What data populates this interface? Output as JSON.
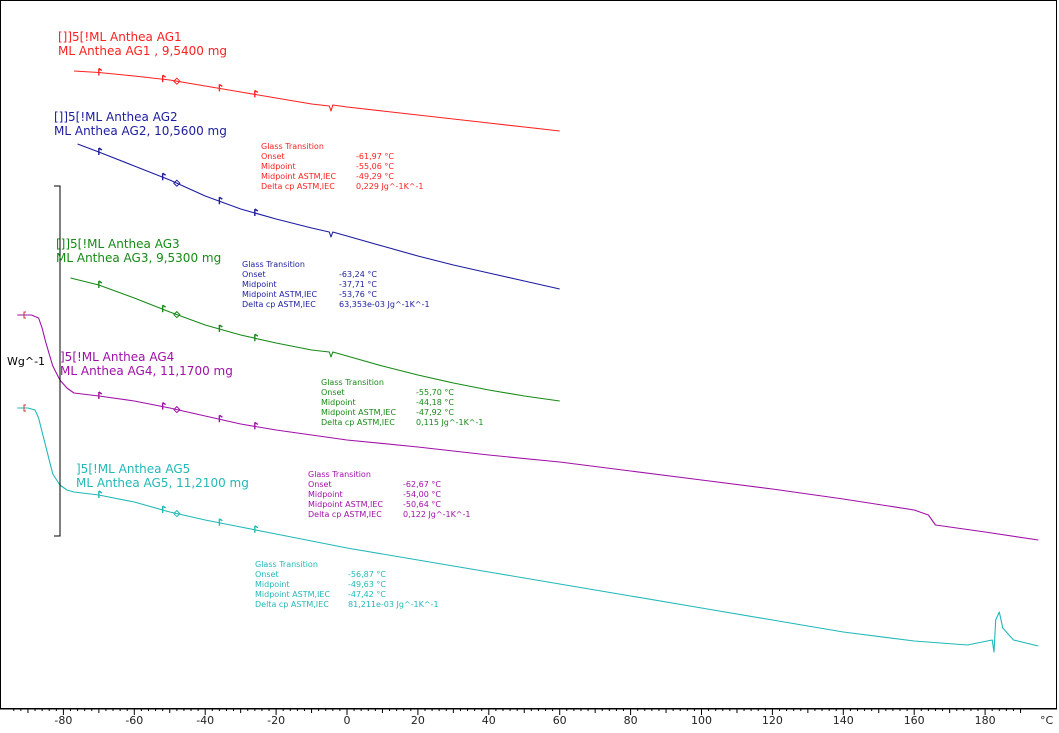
{
  "chart_data": {
    "type": "line",
    "xlabel": "°C",
    "ylabel": "Wg^-1",
    "xlim": [
      -95,
      195
    ],
    "grid": false,
    "x_ticks": [
      "-80",
      "-60",
      "-40",
      "-20",
      "0",
      "20",
      "40",
      "60",
      "80",
      "100",
      "120",
      "140",
      "160",
      "180"
    ],
    "x_tick_values": [
      -80,
      -60,
      -40,
      -20,
      0,
      20,
      40,
      60,
      80,
      100,
      120,
      140,
      160,
      180
    ],
    "series": [
      {
        "title1": "[]]5[!ML Anthea AG1",
        "title2": "ML Anthea AG1 , 9,5400 mg",
        "color": "#ff2020",
        "x": [
          -77,
          -70,
          -60,
          -50,
          -40,
          -30,
          -20,
          -10,
          -5,
          -4.5,
          -4,
          0,
          10,
          20,
          30,
          40,
          50,
          60
        ],
        "y": [
          71,
          72.5,
          76,
          80,
          86,
          92,
          98,
          104,
          106,
          111,
          105,
          107,
          111,
          115,
          119,
          123,
          127,
          131
        ]
      },
      {
        "title1": "[]]5[!ML Anthea AG2",
        "title2": "ML Anthea AG2, 10,5600 mg",
        "color": "#1c1ca0",
        "x": [
          -76,
          -70,
          -60,
          -50,
          -40,
          -30,
          -20,
          -10,
          -5,
          -4.5,
          -4,
          0,
          10,
          20,
          30,
          40,
          50,
          60
        ],
        "y": [
          144,
          152,
          166,
          180,
          196,
          209,
          219,
          228,
          232,
          237,
          232,
          236,
          246,
          256,
          265,
          273,
          281,
          289
        ]
      },
      {
        "title1": "[]]5[!ML Anthea AG3",
        "title2": "ML Anthea AG3, 9,5300 mg",
        "color": "#168a16",
        "x": [
          -78,
          -70,
          -60,
          -50,
          -40,
          -30,
          -20,
          -10,
          -5,
          -4.5,
          -4,
          0,
          10,
          20,
          30,
          40,
          50,
          60
        ],
        "y": [
          278,
          285,
          298,
          312,
          325,
          335,
          343,
          350,
          352,
          357,
          352,
          356,
          366,
          375,
          383,
          390,
          396,
          401
        ]
      },
      {
        "title1": "]5[!ML Anthea AG4",
        "title2": "ML Anthea AG4, 11,1700 mg",
        "color": "#a010a8",
        "x": [
          -93,
          -89,
          -87,
          -86,
          -85,
          -84,
          -83,
          -81,
          -79,
          -77,
          -70,
          -60,
          -50,
          -40,
          -30,
          -20,
          0,
          20,
          40,
          60,
          80,
          100,
          120,
          140,
          160,
          164,
          166,
          180,
          195
        ],
        "y": [
          315,
          315,
          318,
          328,
          342,
          354,
          366,
          380,
          388,
          393,
          396,
          401,
          408,
          416,
          424,
          430,
          440,
          447,
          455,
          462,
          471,
          480,
          489,
          499,
          510,
          515,
          525,
          532,
          540
        ]
      },
      {
        "title1": "]5[!ML Anthea AG5",
        "title2": "ML Anthea AG5, 11,2100 mg",
        "color": "#22b8b8",
        "x": [
          -93,
          -90,
          -88,
          -87,
          -86,
          -85,
          -84,
          -83,
          -81,
          -79,
          -77,
          -70,
          -60,
          -50,
          -40,
          -30,
          -20,
          0,
          20,
          40,
          60,
          80,
          100,
          120,
          140,
          160,
          175,
          182,
          182.5,
          183,
          184,
          185,
          188,
          195
        ],
        "y": [
          408,
          408,
          410,
          418,
          432,
          446,
          460,
          474,
          485,
          490,
          492,
          495,
          502,
          512,
          520,
          527,
          534,
          548,
          560,
          572,
          584,
          596,
          608,
          620,
          632,
          641,
          645,
          640,
          652,
          620,
          612,
          628,
          640,
          646
        ]
      }
    ],
    "glass_transitions": [
      {
        "color": "#ff2020",
        "header": "Glass Transition",
        "rows": [
          {
            "label": "Onset",
            "value": "-61,97 °C"
          },
          {
            "label": "Midpoint",
            "value": "-55,06 °C"
          },
          {
            "label": "Midpoint ASTM,IEC",
            "value": "-49,29 °C"
          },
          {
            "label": "Delta cp ASTM,IEC",
            "value": "0,229 Jg^-1K^-1"
          }
        ]
      },
      {
        "color": "#1c1ca0",
        "header": "Glass Transition",
        "rows": [
          {
            "label": "Onset",
            "value": "-63,24 °C"
          },
          {
            "label": "Midpoint",
            "value": "-37,71 °C"
          },
          {
            "label": "Midpoint ASTM,IEC",
            "value": "-53,76 °C"
          },
          {
            "label": "Delta cp ASTM,IEC",
            "value": "63,353e-03 Jg^-1K^-1"
          }
        ]
      },
      {
        "color": "#168a16",
        "header": "Glass Transition",
        "rows": [
          {
            "label": "Onset",
            "value": "-55,70 °C"
          },
          {
            "label": "Midpoint",
            "value": "-44,18 °C"
          },
          {
            "label": "Midpoint ASTM,IEC",
            "value": "-47,92 °C"
          },
          {
            "label": "Delta cp ASTM,IEC",
            "value": "0,115 Jg^-1K^-1"
          }
        ]
      },
      {
        "color": "#a010a8",
        "header": "Glass Transition",
        "rows": [
          {
            "label": "Onset",
            "value": "-62,67 °C"
          },
          {
            "label": "Midpoint",
            "value": "-54,00 °C"
          },
          {
            "label": "Midpoint ASTM,IEC",
            "value": "-50,64 °C"
          },
          {
            "label": "Delta cp ASTM,IEC",
            "value": "0,122 Jg^-1K^-1"
          }
        ]
      },
      {
        "color": "#22b8b8",
        "header": "Glass Transition",
        "rows": [
          {
            "label": "Onset",
            "value": "-56,87 °C"
          },
          {
            "label": "Midpoint",
            "value": "-49,63 °C"
          },
          {
            "label": "Midpoint ASTM,IEC",
            "value": "-47,42 °C"
          },
          {
            "label": "Delta cp ASTM,IEC",
            "value": "81,211e-03 Jg^-1K^-1"
          }
        ]
      }
    ]
  }
}
